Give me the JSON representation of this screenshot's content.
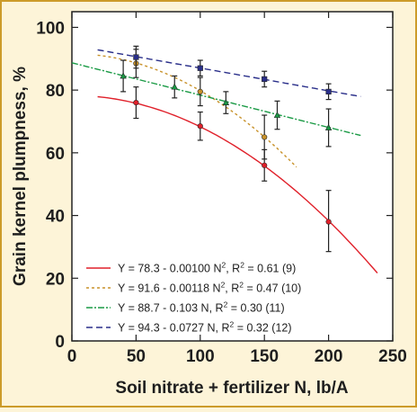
{
  "chart_data": {
    "type": "scatter",
    "title": "",
    "xlabel": "Soil nitrate + fertilizer N, lb/A",
    "ylabel": "Grain kernel plumpness, %",
    "xlim": [
      0,
      250
    ],
    "ylim": [
      0,
      105
    ],
    "x_ticks": [
      0,
      50,
      100,
      150,
      200,
      250
    ],
    "y_ticks": [
      0,
      20,
      40,
      60,
      80,
      100
    ],
    "grid": false,
    "legend_position": "bottom-left",
    "series": [
      {
        "legend": [
          "Y = 78.3 - 0.00100 N",
          "2",
          ", R",
          "2",
          " = 0.61 (9)"
        ],
        "color": "#e0202a",
        "dash": "solid",
        "marker": "circle",
        "fit": {
          "a": 78.3,
          "b": -0.001,
          "form": "quadratic",
          "x_range": [
            20,
            238
          ]
        },
        "points": [
          {
            "x": 50,
            "y": 76,
            "lo": 71,
            "hi": 81
          },
          {
            "x": 100,
            "y": 68.5,
            "lo": 64,
            "hi": 73
          },
          {
            "x": 150,
            "y": 56,
            "lo": 51,
            "hi": 61
          },
          {
            "x": 200,
            "y": 38,
            "lo": 28.5,
            "hi": 48
          }
        ]
      },
      {
        "legend": [
          "Y = 91.6 - 0.00118 N",
          "2",
          ", R",
          "2",
          " = 0.47 (10)"
        ],
        "color": "#c8922a",
        "dash": "3,3",
        "marker": "circle",
        "fit": {
          "a": 91.6,
          "b": -0.00118,
          "form": "quadratic",
          "x_range": [
            20,
            175
          ]
        },
        "points": [
          {
            "x": 50,
            "y": 88.5,
            "lo": 84,
            "hi": 93
          },
          {
            "x": 100,
            "y": 79.5,
            "lo": 75,
            "hi": 84
          },
          {
            "x": 150,
            "y": 65,
            "lo": 58,
            "hi": 72
          }
        ]
      },
      {
        "legend": [
          "Y = 88.7 - 0.103 N, R",
          "2",
          " = 0.30 (11)"
        ],
        "color": "#1a9a45",
        "dash": "7,2,2,2",
        "marker": "triangle",
        "fit": {
          "a": 88.7,
          "b": -0.103,
          "form": "linear",
          "x_range": [
            0,
            225
          ]
        },
        "points": [
          {
            "x": 40,
            "y": 84.5,
            "lo": 79.5,
            "hi": 89.5
          },
          {
            "x": 80,
            "y": 81,
            "lo": 77.5,
            "hi": 84.5
          },
          {
            "x": 120,
            "y": 76,
            "lo": 72.5,
            "hi": 79.5
          },
          {
            "x": 160,
            "y": 72,
            "lo": 67.5,
            "hi": 76.5
          },
          {
            "x": 200,
            "y": 68,
            "lo": 62,
            "hi": 74
          }
        ]
      },
      {
        "legend": [
          "Y = 94.3 - 0.0727 N, R",
          "2",
          " = 0.32 (12)"
        ],
        "color": "#2a2f8a",
        "dash": "7,4",
        "marker": "square",
        "fit": {
          "a": 94.3,
          "b": -0.0727,
          "form": "linear",
          "x_range": [
            20,
            225
          ]
        },
        "points": [
          {
            "x": 50,
            "y": 90.5,
            "lo": 87,
            "hi": 94
          },
          {
            "x": 100,
            "y": 87,
            "lo": 84.5,
            "hi": 89.5
          },
          {
            "x": 150,
            "y": 83.5,
            "lo": 81,
            "hi": 86
          },
          {
            "x": 200,
            "y": 79.5,
            "lo": 77,
            "hi": 82
          }
        ]
      }
    ]
  }
}
